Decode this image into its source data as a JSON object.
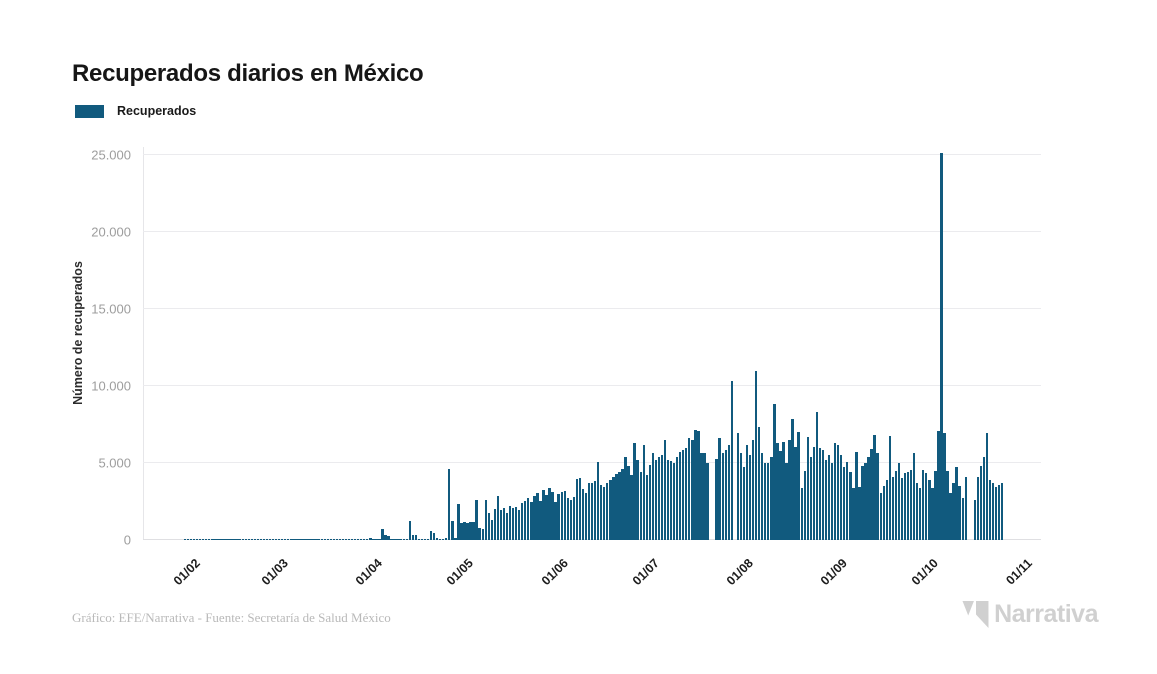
{
  "chart_data": {
    "type": "bar",
    "title": "Recuperados diarios en México",
    "legend": "Recuperados",
    "ylabel": "Número de recuperados",
    "ylim": [
      0,
      25000
    ],
    "yticks": [
      "0",
      "5.000",
      "10.000",
      "15.000",
      "20.000",
      "25.000"
    ],
    "bar_color": "#115a7e",
    "grid": true,
    "legend_position": "top-left",
    "months": [
      {
        "tick": "01/02",
        "days": [
          12,
          15,
          10,
          14,
          18,
          11,
          16,
          13,
          15,
          20,
          12,
          17,
          14,
          19,
          15,
          11,
          18,
          14,
          16,
          21,
          13,
          17,
          15,
          19,
          14,
          18,
          12,
          16,
          20
        ]
      },
      {
        "tick": "01/03",
        "days": [
          15,
          18,
          14,
          20,
          16,
          13,
          19,
          15,
          17,
          14,
          21,
          18,
          15,
          20,
          16,
          19,
          23,
          17,
          21,
          25,
          19,
          28,
          22,
          26,
          30,
          24,
          35,
          28,
          40,
          32,
          45
        ]
      },
      {
        "tick": "01/04",
        "days": [
          50,
          150,
          60,
          70,
          80,
          700,
          300,
          250,
          70,
          80,
          60,
          90,
          70,
          80,
          1250,
          350,
          300,
          90,
          80,
          70,
          90,
          600,
          450,
          100,
          90,
          80,
          120,
          4600,
          1250,
          100
        ]
      },
      {
        "tick": "01/05",
        "days": [
          2340,
          1130,
          1190,
          1100,
          1150,
          1170,
          2600,
          800,
          740,
          2620,
          1730,
          1300,
          2000,
          2860,
          1950,
          2100,
          1780,
          2230,
          2060,
          2120,
          1950,
          2380,
          2510,
          2730,
          2450,
          2850,
          3030,
          2550,
          3250,
          2920,
          3400
        ]
      },
      {
        "tick": "01/06",
        "days": [
          3140,
          2470,
          2990,
          3140,
          3200,
          2710,
          2600,
          2800,
          3940,
          4010,
          3290,
          3070,
          3680,
          3700,
          3850,
          5090,
          3570,
          3460,
          3680,
          3900,
          4110,
          4270,
          4440,
          4590,
          5410,
          4800,
          4220,
          6280,
          5200,
          4440
        ]
      },
      {
        "tick": "01/07",
        "days": [
          6170,
          4220,
          4870,
          5630,
          5200,
          5410,
          5520,
          6500,
          5200,
          5100,
          4980,
          5410,
          5740,
          5850,
          5950,
          6600,
          6500,
          7140,
          7100,
          5630,
          5630,
          4980,
          0,
          0,
          5240,
          6650,
          5630,
          5850,
          6200,
          10300,
          0
        ]
      },
      {
        "tick": "01/08",
        "days": [
          6970,
          5630,
          4760,
          6170,
          5500,
          6500,
          11000,
          7360,
          5630,
          4980,
          5000,
          5410,
          8800,
          6280,
          5800,
          6390,
          4980,
          6500,
          7840,
          6060,
          7040,
          3360,
          4500,
          6710,
          5410,
          6060,
          8290,
          6000,
          5850,
          5200,
          5520
        ]
      },
      {
        "tick": "01/09",
        "days": [
          4980,
          6280,
          6170,
          5500,
          4760,
          5090,
          4400,
          3360,
          5740,
          3460,
          4800,
          5000,
          5410,
          5900,
          6800,
          5630,
          3030,
          3500,
          3900,
          6760,
          4110,
          4500,
          4980,
          4010,
          4330,
          4400,
          4550,
          5630,
          3680,
          3360
        ]
      },
      {
        "tick": "01/10",
        "days": [
          4550,
          4330,
          3900,
          3360,
          4500,
          7100,
          25100,
          6930,
          4500,
          3030,
          3680,
          4760,
          3500,
          2710,
          4110,
          0,
          0,
          2600,
          4110,
          4800,
          5410,
          6930,
          3900,
          3700,
          3460,
          3570,
          3680,
          0,
          0,
          0,
          0
        ]
      },
      {
        "tick": "01/11",
        "days": []
      }
    ]
  },
  "footer": {
    "credit": "Gráfico: EFE/Narrativa - Fuente: Secretaría de Salud México",
    "brand": "Narrativa"
  }
}
